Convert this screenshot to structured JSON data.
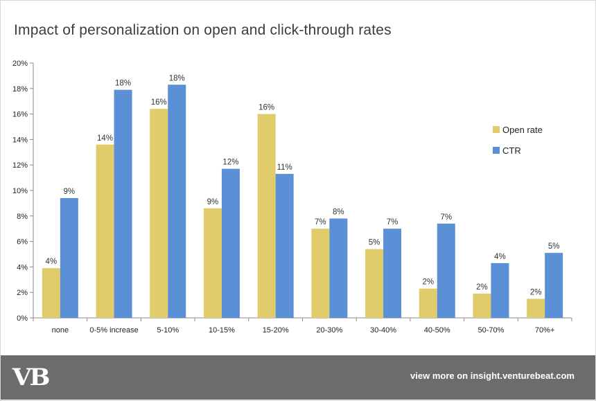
{
  "colors": {
    "open_rate": "#e0cc6a",
    "ctr": "#5b8fd6",
    "footer_bg": "#6b6c6e"
  },
  "footer": {
    "logo_text": "VB",
    "link_text": "view more on insight.venturebeat.com"
  },
  "chart_data": {
    "type": "bar",
    "title": "Impact of personalization on open and click-through rates",
    "xlabel": "",
    "ylabel": "",
    "categories": [
      "none",
      "0-5% increase",
      "5-10%",
      "10-15%",
      "15-20%",
      "20-30%",
      "30-40%",
      "40-50%",
      "50-70%",
      "70%+"
    ],
    "ylim": [
      0,
      20
    ],
    "yticks": [
      "0%",
      "2%",
      "4%",
      "6%",
      "8%",
      "10%",
      "12%",
      "14%",
      "16%",
      "18%",
      "20%"
    ],
    "grid": false,
    "legend_position": "right",
    "series": [
      {
        "name": "Open rate",
        "color": "#e0cc6a",
        "values": [
          3.9,
          13.6,
          16.4,
          8.6,
          16.0,
          7.0,
          5.4,
          2.3,
          1.9,
          1.5
        ],
        "labels": [
          "4%",
          "14%",
          "16%",
          "9%",
          "16%",
          "7%",
          "5%",
          "2%",
          "2%",
          "2%"
        ]
      },
      {
        "name": "CTR",
        "color": "#5b8fd6",
        "values": [
          9.4,
          17.9,
          18.3,
          11.7,
          11.3,
          7.8,
          7.0,
          7.4,
          4.3,
          5.1
        ],
        "labels": [
          "9%",
          "18%",
          "18%",
          "12%",
          "11%",
          "8%",
          "7%",
          "7%",
          "4%",
          "5%"
        ]
      }
    ]
  }
}
